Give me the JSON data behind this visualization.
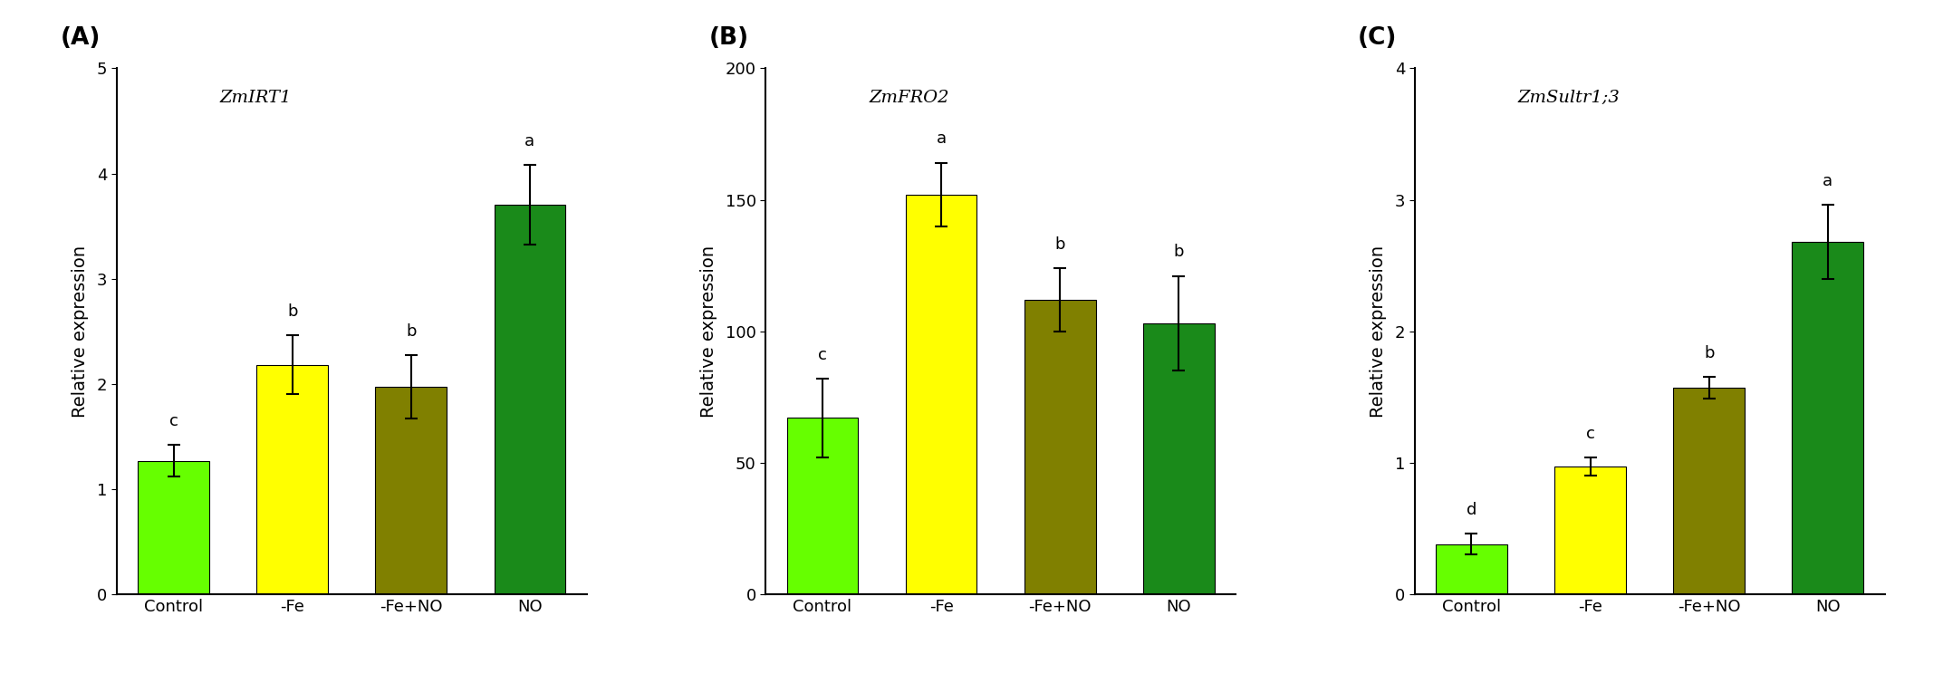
{
  "panels": [
    {
      "label": "(A)",
      "gene": "ZmIRT1",
      "categories": [
        "Control",
        "-Fe",
        "-Fe+NO",
        "NO"
      ],
      "values": [
        1.27,
        2.18,
        1.97,
        3.7
      ],
      "errors": [
        0.15,
        0.28,
        0.3,
        0.38
      ],
      "letters": [
        "c",
        "b",
        "b",
        "a"
      ],
      "colors": [
        "#66ff00",
        "#ffff00",
        "#808000",
        "#1a8a1a"
      ],
      "ylim": [
        0,
        5
      ],
      "yticks": [
        0,
        1,
        2,
        3,
        4,
        5
      ],
      "ylabel": "Relative expression"
    },
    {
      "label": "(B)",
      "gene": "ZmFRO2",
      "categories": [
        "Control",
        "-Fe",
        "-Fe+NO",
        "NO"
      ],
      "values": [
        67,
        152,
        112,
        103
      ],
      "errors": [
        15,
        12,
        12,
        18
      ],
      "letters": [
        "c",
        "a",
        "b",
        "b"
      ],
      "colors": [
        "#66ff00",
        "#ffff00",
        "#808000",
        "#1a8a1a"
      ],
      "ylim": [
        0,
        200
      ],
      "yticks": [
        0,
        50,
        100,
        150,
        200
      ],
      "ylabel": "Relative expression"
    },
    {
      "label": "(C)",
      "gene": "ZmSultr1;3",
      "categories": [
        "Control",
        "-Fe",
        "-Fe+NO",
        "NO"
      ],
      "values": [
        0.38,
        0.97,
        1.57,
        2.68
      ],
      "errors": [
        0.08,
        0.07,
        0.08,
        0.28
      ],
      "letters": [
        "d",
        "c",
        "b",
        "a"
      ],
      "colors": [
        "#66ff00",
        "#ffff00",
        "#808000",
        "#1a8a1a"
      ],
      "ylim": [
        0,
        4
      ],
      "yticks": [
        0,
        1,
        2,
        3,
        4
      ],
      "ylabel": "Relative expression"
    }
  ],
  "background_color": "#ffffff",
  "bar_width": 0.6,
  "gene_fontsize": 14,
  "tick_fontsize": 13,
  "ylabel_fontsize": 14,
  "letter_fontsize": 13,
  "panel_label_fontsize": 19
}
